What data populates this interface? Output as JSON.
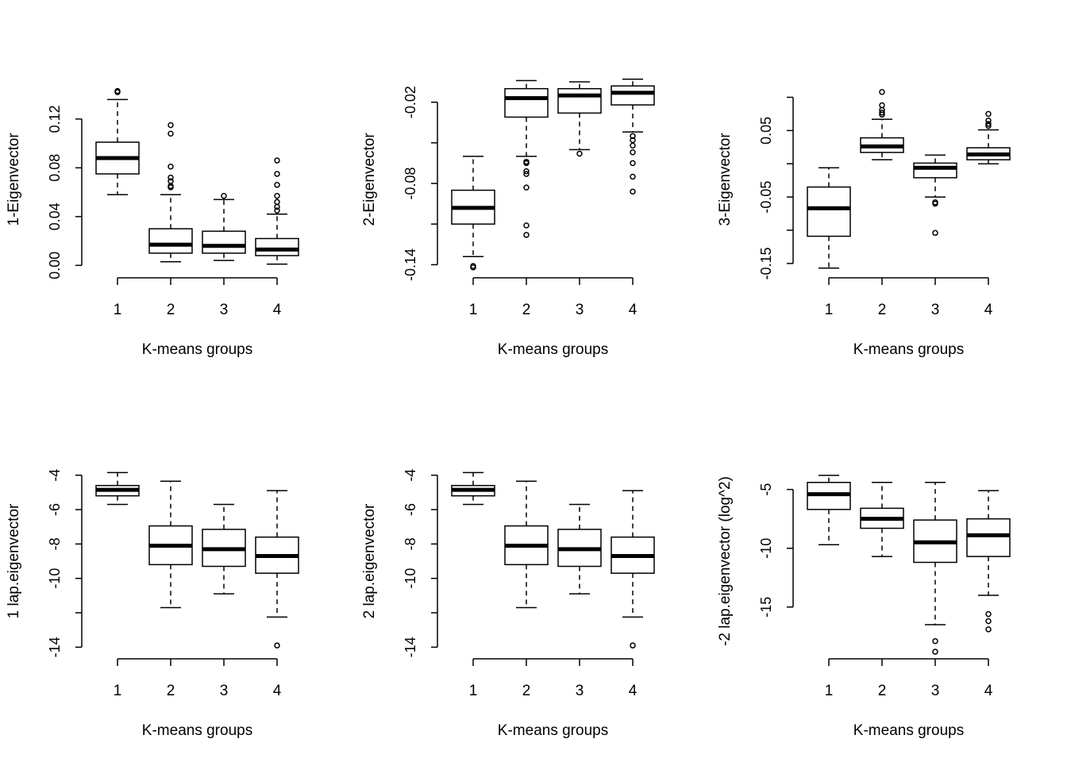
{
  "chart_data": [
    {
      "type": "box",
      "xlabel": "K-means groups",
      "ylabel": "1-Eigenvector",
      "categories": [
        "1",
        "2",
        "3",
        "4"
      ],
      "yticks": [
        0.0,
        0.04,
        0.08,
        0.12
      ],
      "ytick_labels": [
        "0.00",
        "0.04",
        "0.08",
        "0.12"
      ],
      "ylim": [
        -0.005,
        0.146
      ],
      "boxes": [
        {
          "group": "1",
          "lower_whisker": 0.058,
          "q1": 0.075,
          "median": 0.088,
          "q3": 0.101,
          "upper_whisker": 0.136,
          "outliers": [
            0.142,
            0.143
          ]
        },
        {
          "group": "2",
          "lower_whisker": 0.003,
          "q1": 0.01,
          "median": 0.017,
          "q3": 0.03,
          "upper_whisker": 0.058,
          "outliers": [
            0.064,
            0.065,
            0.069,
            0.072,
            0.081,
            0.108,
            0.115
          ]
        },
        {
          "group": "3",
          "lower_whisker": 0.004,
          "q1": 0.01,
          "median": 0.016,
          "q3": 0.028,
          "upper_whisker": 0.054,
          "outliers": [
            0.057
          ]
        },
        {
          "group": "4",
          "lower_whisker": 0.001,
          "q1": 0.008,
          "median": 0.013,
          "q3": 0.022,
          "upper_whisker": 0.042,
          "outliers": [
            0.045,
            0.048,
            0.052,
            0.057,
            0.066,
            0.075,
            0.086
          ]
        }
      ]
    },
    {
      "type": "box",
      "xlabel": "K-means groups",
      "ylabel": "2-Eigenvector",
      "categories": [
        "1",
        "2",
        "3",
        "4"
      ],
      "yticks": [
        -0.14,
        -0.11,
        -0.08,
        -0.05,
        -0.02
      ],
      "ytick_labels": [
        "-0.14",
        "",
        "-0.08",
        "",
        "-0.02"
      ],
      "ylim": [
        -0.145,
        -0.009
      ],
      "boxes": [
        {
          "group": "1",
          "lower_whisker": -0.134,
          "q1": -0.11,
          "median": -0.098,
          "q3": -0.085,
          "upper_whisker": -0.06,
          "outliers": [
            -0.141,
            -0.142
          ]
        },
        {
          "group": "2",
          "lower_whisker": -0.06,
          "q1": -0.031,
          "median": -0.017,
          "q3": -0.01,
          "upper_whisker": -0.004,
          "outliers": [
            -0.064,
            -0.065,
            -0.071,
            -0.073,
            -0.083,
            -0.111,
            -0.118
          ]
        },
        {
          "group": "3",
          "lower_whisker": -0.055,
          "q1": -0.028,
          "median": -0.015,
          "q3": -0.01,
          "upper_whisker": -0.005,
          "outliers": [
            -0.058
          ]
        },
        {
          "group": "4",
          "lower_whisker": -0.042,
          "q1": -0.022,
          "median": -0.013,
          "q3": -0.008,
          "upper_whisker": -0.003,
          "outliers": [
            -0.045,
            -0.048,
            -0.052,
            -0.057,
            -0.065,
            -0.075,
            -0.086
          ]
        }
      ]
    },
    {
      "type": "box",
      "xlabel": "K-means groups",
      "ylabel": "3-Eigenvector",
      "categories": [
        "1",
        "2",
        "3",
        "4"
      ],
      "yticks": [
        -0.15,
        -0.1,
        -0.05,
        0.0,
        0.05,
        0.1
      ],
      "ytick_labels": [
        "-0.15",
        "",
        "-0.05",
        "",
        "0.05",
        ""
      ],
      "ylim": [
        -0.162,
        0.115
      ],
      "boxes": [
        {
          "group": "1",
          "lower_whisker": -0.157,
          "q1": -0.109,
          "median": -0.067,
          "q3": -0.035,
          "upper_whisker": -0.006,
          "outliers": []
        },
        {
          "group": "2",
          "lower_whisker": 0.006,
          "q1": 0.017,
          "median": 0.026,
          "q3": 0.039,
          "upper_whisker": 0.067,
          "outliers": [
            0.074,
            0.077,
            0.081,
            0.088,
            0.108
          ]
        },
        {
          "group": "3",
          "lower_whisker": -0.05,
          "q1": -0.021,
          "median": -0.006,
          "q3": 0.001,
          "upper_whisker": 0.013,
          "outliers": [
            -0.058,
            -0.06,
            -0.104
          ]
        },
        {
          "group": "4",
          "lower_whisker": 0.0,
          "q1": 0.006,
          "median": 0.014,
          "q3": 0.024,
          "upper_whisker": 0.051,
          "outliers": [
            0.057,
            0.06,
            0.065,
            0.075
          ]
        }
      ]
    },
    {
      "type": "box",
      "xlabel": "K-means groups",
      "ylabel": "1 lap.eigenvector",
      "categories": [
        "1",
        "2",
        "3",
        "4"
      ],
      "yticks": [
        -14,
        -12,
        -10,
        -8,
        -6,
        -4
      ],
      "ytick_labels": [
        "-14",
        "",
        "-10",
        "-8",
        "-6",
        "-4"
      ],
      "ylim": [
        -14.4,
        -3.6
      ],
      "boxes": [
        {
          "group": "1",
          "lower_whisker": -5.7,
          "q1": -5.2,
          "median": -4.85,
          "q3": -4.6,
          "upper_whisker": -3.85,
          "outliers": []
        },
        {
          "group": "2",
          "lower_whisker": -11.7,
          "q1": -9.2,
          "median": -8.1,
          "q3": -6.95,
          "upper_whisker": -4.35,
          "outliers": []
        },
        {
          "group": "3",
          "lower_whisker": -10.9,
          "q1": -9.3,
          "median": -8.3,
          "q3": -7.15,
          "upper_whisker": -5.7,
          "outliers": []
        },
        {
          "group": "4",
          "lower_whisker": -12.25,
          "q1": -9.7,
          "median": -8.7,
          "q3": -7.6,
          "upper_whisker": -4.9,
          "outliers": [
            -13.9
          ]
        }
      ]
    },
    {
      "type": "box",
      "xlabel": "K-means groups",
      "ylabel": "2 lap.eigenvector",
      "categories": [
        "1",
        "2",
        "3",
        "4"
      ],
      "yticks": [
        -14,
        -12,
        -10,
        -8,
        -6,
        -4
      ],
      "ytick_labels": [
        "-14",
        "",
        "-10",
        "-8",
        "-6",
        "-4"
      ],
      "ylim": [
        -14.4,
        -3.6
      ],
      "boxes": [
        {
          "group": "1",
          "lower_whisker": -5.7,
          "q1": -5.2,
          "median": -4.85,
          "q3": -4.6,
          "upper_whisker": -3.85,
          "outliers": []
        },
        {
          "group": "2",
          "lower_whisker": -11.7,
          "q1": -9.2,
          "median": -8.1,
          "q3": -6.95,
          "upper_whisker": -4.35,
          "outliers": []
        },
        {
          "group": "3",
          "lower_whisker": -10.9,
          "q1": -9.3,
          "median": -8.3,
          "q3": -7.15,
          "upper_whisker": -5.7,
          "outliers": []
        },
        {
          "group": "4",
          "lower_whisker": -12.25,
          "q1": -9.7,
          "median": -8.7,
          "q3": -7.6,
          "upper_whisker": -4.9,
          "outliers": [
            -13.9
          ]
        }
      ]
    },
    {
      "type": "box",
      "xlabel": "K-means groups",
      "ylabel": "-2 lap.eigenvector (log^2)",
      "categories": [
        "1",
        "2",
        "3",
        "4"
      ],
      "yticks": [
        -15,
        -10,
        -5
      ],
      "ytick_labels": [
        "-15",
        "-10",
        "-5"
      ],
      "ylim": [
        -19.0,
        -3.2
      ],
      "boxes": [
        {
          "group": "1",
          "lower_whisker": -9.7,
          "q1": -6.7,
          "median": -5.4,
          "q3": -4.4,
          "upper_whisker": -3.8,
          "outliers": []
        },
        {
          "group": "2",
          "lower_whisker": -10.7,
          "q1": -8.3,
          "median": -7.5,
          "q3": -6.6,
          "upper_whisker": -4.4,
          "outliers": []
        },
        {
          "group": "3",
          "lower_whisker": -16.5,
          "q1": -11.2,
          "median": -9.5,
          "q3": -7.6,
          "upper_whisker": -4.4,
          "outliers": [
            -17.9,
            -18.8
          ]
        },
        {
          "group": "4",
          "lower_whisker": -14.0,
          "q1": -10.7,
          "median": -8.9,
          "q3": -7.5,
          "upper_whisker": -5.1,
          "outliers": [
            -15.6,
            -16.2,
            -16.9
          ]
        }
      ]
    }
  ]
}
